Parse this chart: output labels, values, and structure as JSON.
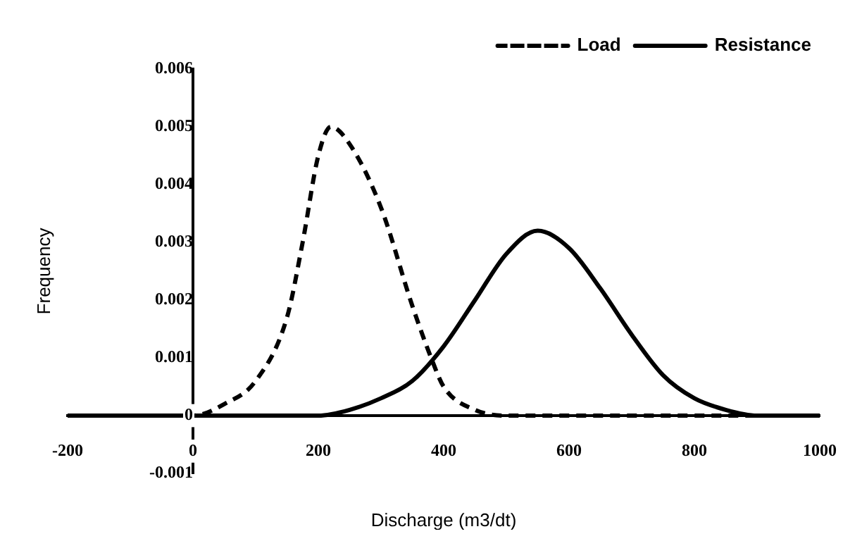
{
  "chart_data": {
    "type": "line",
    "xlabel": "Discharge (m3/dt)",
    "ylabel": "Frequency",
    "xlim": [
      -200,
      1000
    ],
    "ylim": [
      -0.001,
      0.006
    ],
    "xticks": [
      -200,
      0,
      200,
      400,
      600,
      800,
      1000
    ],
    "yticks": [
      -0.001,
      0,
      0.001,
      0.002,
      0.003,
      0.004,
      0.005,
      0.006
    ],
    "grid": false,
    "legend": "top right",
    "marker": "none",
    "series": [
      {
        "name": "Load",
        "color": "#000000",
        "line_style": "dashed",
        "x": [
          -200,
          -100,
          0,
          50,
          100,
          150,
          175,
          200,
          220,
          250,
          300,
          350,
          380,
          400,
          450,
          500,
          600,
          800,
          1000
        ],
        "values": [
          0,
          0,
          0,
          0.0002,
          0.0006,
          0.0017,
          0.003,
          0.0045,
          0.005,
          0.0047,
          0.0036,
          0.0019,
          0.001,
          0.0005,
          0.0001,
          0,
          0,
          0,
          0
        ]
      },
      {
        "name": "Resistance",
        "color": "#000000",
        "line_style": "solid",
        "x": [
          -200,
          0,
          150,
          200,
          250,
          300,
          350,
          400,
          450,
          500,
          550,
          600,
          650,
          700,
          750,
          800,
          850,
          900,
          950,
          1000
        ],
        "values": [
          0,
          0,
          0,
          0,
          0.0001,
          0.0003,
          0.0006,
          0.0012,
          0.002,
          0.0028,
          0.0032,
          0.0029,
          0.0022,
          0.0014,
          0.0007,
          0.0003,
          0.0001,
          0,
          0,
          0
        ]
      }
    ]
  }
}
